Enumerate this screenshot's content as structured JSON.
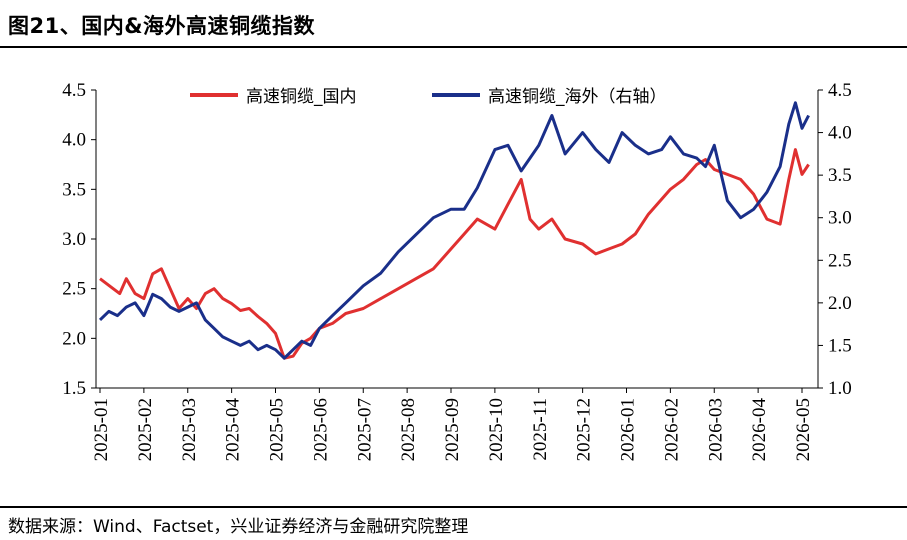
{
  "header": {
    "title": "图21、国内&海外高速铜缆指数"
  },
  "footer": {
    "source": "数据来源：Wind、Factset，兴业证券经济与金融研究院整理"
  },
  "colors": {
    "domestic": "#e03030",
    "overseas": "#1a2f8a"
  },
  "chart_data": {
    "type": "line",
    "x_categories": [
      "2025-01",
      "2025-02",
      "2025-03",
      "2025-04",
      "2025-05",
      "2025-06",
      "2025-07",
      "2025-08",
      "2025-09",
      "2025-10",
      "2025-11",
      "2025-12",
      "2026-01",
      "2026-02",
      "2026-03",
      "2026-04",
      "2026-05"
    ],
    "y_left": {
      "ticks": [
        "1.5",
        "2.0",
        "2.5",
        "3.0",
        "3.5",
        "4.0",
        "4.5"
      ],
      "range": [
        1.5,
        4.5
      ]
    },
    "y_right": {
      "ticks": [
        "1.0",
        "1.5",
        "2.0",
        "2.5",
        "3.0",
        "3.5",
        "4.0",
        "4.5"
      ],
      "range": [
        1.0,
        4.5
      ]
    },
    "legend_position": "top",
    "series": [
      {
        "name": "高速铜缆_国内",
        "axis": "left",
        "color": "#e03030",
        "x": [
          0,
          0.15,
          0.3,
          0.45,
          0.6,
          0.8,
          1.0,
          1.2,
          1.4,
          1.6,
          1.8,
          2.0,
          2.2,
          2.4,
          2.6,
          2.8,
          3.0,
          3.2,
          3.4,
          3.6,
          3.8,
          4.0,
          4.2,
          4.4,
          4.6,
          4.8,
          5.0,
          5.3,
          5.6,
          6.0,
          6.4,
          6.8,
          7.2,
          7.6,
          8.0,
          8.3,
          8.6,
          9.0,
          9.3,
          9.6,
          9.8,
          10.0,
          10.3,
          10.6,
          11.0,
          11.3,
          11.6,
          11.9,
          12.2,
          12.5,
          12.8,
          13.0,
          13.3,
          13.6,
          13.8,
          14.0,
          14.3,
          14.6,
          14.9,
          15.2,
          15.5,
          15.7,
          15.85,
          16.0,
          16.15
        ],
        "values": [
          2.6,
          2.55,
          2.5,
          2.45,
          2.6,
          2.45,
          2.4,
          2.65,
          2.7,
          2.5,
          2.3,
          2.4,
          2.3,
          2.45,
          2.5,
          2.4,
          2.35,
          2.28,
          2.3,
          2.22,
          2.15,
          2.05,
          1.8,
          1.82,
          1.95,
          2.0,
          2.1,
          2.15,
          2.25,
          2.3,
          2.4,
          2.5,
          2.6,
          2.7,
          2.9,
          3.05,
          3.2,
          3.1,
          3.35,
          3.6,
          3.2,
          3.1,
          3.2,
          3.0,
          2.95,
          2.85,
          2.9,
          2.95,
          3.05,
          3.25,
          3.4,
          3.5,
          3.6,
          3.75,
          3.8,
          3.7,
          3.65,
          3.6,
          3.45,
          3.2,
          3.15,
          3.6,
          3.9,
          3.65,
          3.75
        ]
      },
      {
        "name": "高速铜缆_海外（右轴）",
        "axis": "right",
        "color": "#1a2f8a",
        "x": [
          0,
          0.2,
          0.4,
          0.6,
          0.8,
          1.0,
          1.2,
          1.4,
          1.6,
          1.8,
          2.0,
          2.2,
          2.4,
          2.6,
          2.8,
          3.0,
          3.2,
          3.4,
          3.6,
          3.8,
          4.0,
          4.2,
          4.4,
          4.6,
          4.8,
          5.0,
          5.3,
          5.6,
          6.0,
          6.4,
          6.8,
          7.2,
          7.6,
          8.0,
          8.3,
          8.6,
          9.0,
          9.3,
          9.6,
          9.8,
          10.0,
          10.3,
          10.6,
          11.0,
          11.3,
          11.6,
          11.9,
          12.2,
          12.5,
          12.8,
          13.0,
          13.3,
          13.6,
          13.8,
          14.0,
          14.3,
          14.6,
          14.9,
          15.2,
          15.5,
          15.7,
          15.85,
          16.0,
          16.15
        ],
        "values": [
          1.8,
          1.9,
          1.85,
          1.95,
          2.0,
          1.85,
          2.1,
          2.05,
          1.95,
          1.9,
          1.95,
          2.0,
          1.8,
          1.7,
          1.6,
          1.55,
          1.5,
          1.55,
          1.45,
          1.5,
          1.45,
          1.35,
          1.45,
          1.55,
          1.5,
          1.7,
          1.85,
          2.0,
          2.2,
          2.35,
          2.6,
          2.8,
          3.0,
          3.1,
          3.1,
          3.35,
          3.8,
          3.85,
          3.55,
          3.7,
          3.85,
          4.2,
          3.75,
          4.0,
          3.8,
          3.65,
          4.0,
          3.85,
          3.75,
          3.8,
          3.95,
          3.75,
          3.7,
          3.6,
          3.85,
          3.2,
          3.0,
          3.1,
          3.3,
          3.6,
          4.1,
          4.35,
          4.05,
          4.2
        ]
      }
    ]
  }
}
